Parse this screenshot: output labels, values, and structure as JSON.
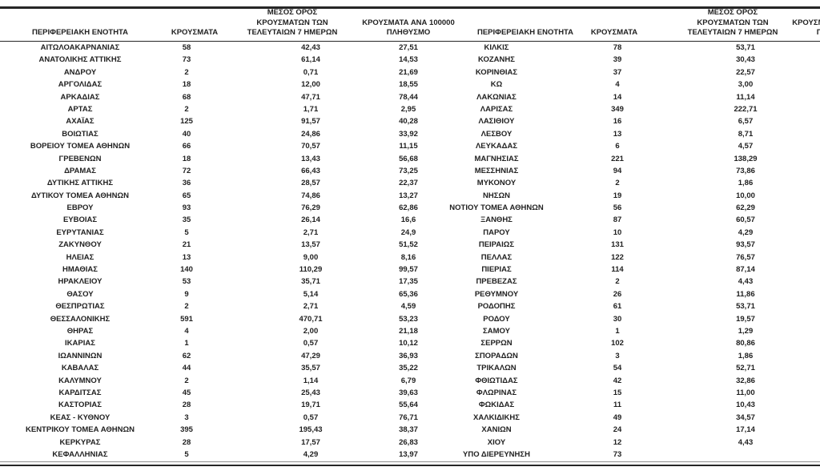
{
  "header": {
    "region": "ΠΕΡΙΦΕΡΕΙΑΚΗ ΕΝΟΤΗΤΑ",
    "cases": "ΚΡΟΥΣΜΑΤΑ",
    "avg7_l1": "ΜΕΣΟΣ ΟΡΟΣ",
    "avg7_l2": "ΚΡΟΥΣΜΑΤΩΝ ΤΩΝ",
    "avg7_l3": "ΤΕΛΕΥΤΑΙΩΝ 7 ΗΜΕΡΩΝ",
    "per100k_l1": "ΚΡΟΥΣΜΑΤΑ ΑΝΑ 100000",
    "per100k_l2": "ΠΛΗΘΥΣΜΟ"
  },
  "colors": {
    "text": "#212121",
    "border_dark": "#262626",
    "border_light": "#8f8f8f",
    "background": "#ffffff"
  },
  "left_table": {
    "rows": [
      {
        "region": "ΑΙΤΩΛΟΑΚΑΡΝΑΝΙΑΣ",
        "cases": "58",
        "avg7": "42,43",
        "per100k": "27,51"
      },
      {
        "region": "ΑΝΑΤΟΛΙΚΗΣ ΑΤΤΙΚΗΣ",
        "cases": "73",
        "avg7": "61,14",
        "per100k": "14,53"
      },
      {
        "region": "ΑΝΔΡΟΥ",
        "cases": "2",
        "avg7": "0,71",
        "per100k": "21,69"
      },
      {
        "region": "ΑΡΓΟΛΙΔΑΣ",
        "cases": "18",
        "avg7": "12,00",
        "per100k": "18,55"
      },
      {
        "region": "ΑΡΚΑΔΙΑΣ",
        "cases": "68",
        "avg7": "47,71",
        "per100k": "78,44"
      },
      {
        "region": "ΑΡΤΑΣ",
        "cases": "2",
        "avg7": "1,71",
        "per100k": "2,95"
      },
      {
        "region": "ΑΧΑΪΑΣ",
        "cases": "125",
        "avg7": "91,57",
        "per100k": "40,28"
      },
      {
        "region": "ΒΟΙΩΤΙΑΣ",
        "cases": "40",
        "avg7": "24,86",
        "per100k": "33,92"
      },
      {
        "region": "ΒΟΡΕΙΟΥ ΤΟΜΕΑ ΑΘΗΝΩΝ",
        "cases": "66",
        "avg7": "70,57",
        "per100k": "11,15"
      },
      {
        "region": "ΓΡΕΒΕΝΩΝ",
        "cases": "18",
        "avg7": "13,43",
        "per100k": "56,68"
      },
      {
        "region": "ΔΡΑΜΑΣ",
        "cases": "72",
        "avg7": "66,43",
        "per100k": "73,25"
      },
      {
        "region": "ΔΥΤΙΚΗΣ ΑΤΤΙΚΗΣ",
        "cases": "36",
        "avg7": "28,57",
        "per100k": "22,37"
      },
      {
        "region": "ΔΥΤΙΚΟΥ ΤΟΜΕΑ ΑΘΗΝΩΝ",
        "cases": "65",
        "avg7": "74,86",
        "per100k": "13,27"
      },
      {
        "region": "ΕΒΡΟΥ",
        "cases": "93",
        "avg7": "76,29",
        "per100k": "62,86"
      },
      {
        "region": "ΕΥΒΟΙΑΣ",
        "cases": "35",
        "avg7": "26,14",
        "per100k": "16,6"
      },
      {
        "region": "ΕΥΡΥΤΑΝΙΑΣ",
        "cases": "5",
        "avg7": "2,71",
        "per100k": "24,9"
      },
      {
        "region": "ΖΑΚΥΝΘΟΥ",
        "cases": "21",
        "avg7": "13,57",
        "per100k": "51,52"
      },
      {
        "region": "ΗΛΕΙΑΣ",
        "cases": "13",
        "avg7": "9,00",
        "per100k": "8,16"
      },
      {
        "region": "ΗΜΑΘΙΑΣ",
        "cases": "140",
        "avg7": "110,29",
        "per100k": "99,57"
      },
      {
        "region": "ΗΡΑΚΛΕΙΟΥ",
        "cases": "53",
        "avg7": "35,71",
        "per100k": "17,35"
      },
      {
        "region": "ΘΑΣΟΥ",
        "cases": "9",
        "avg7": "5,14",
        "per100k": "65,36"
      },
      {
        "region": "ΘΕΣΠΡΩΤΙΑΣ",
        "cases": "2",
        "avg7": "2,71",
        "per100k": "4,59"
      },
      {
        "region": "ΘΕΣΣΑΛΟΝΙΚΗΣ",
        "cases": "591",
        "avg7": "470,71",
        "per100k": "53,23"
      },
      {
        "region": "ΘΗΡΑΣ",
        "cases": "4",
        "avg7": "2,00",
        "per100k": "21,18"
      },
      {
        "region": "ΙΚΑΡΙΑΣ",
        "cases": "1",
        "avg7": "0,57",
        "per100k": "10,12"
      },
      {
        "region": "ΙΩΑΝΝΙΝΩΝ",
        "cases": "62",
        "avg7": "47,29",
        "per100k": "36,93"
      },
      {
        "region": "ΚΑΒΑΛΑΣ",
        "cases": "44",
        "avg7": "35,57",
        "per100k": "35,22"
      },
      {
        "region": "ΚΑΛΥΜΝΟΥ",
        "cases": "2",
        "avg7": "1,14",
        "per100k": "6,79"
      },
      {
        "region": "ΚΑΡΔΙΤΣΑΣ",
        "cases": "45",
        "avg7": "25,43",
        "per100k": "39,63"
      },
      {
        "region": "ΚΑΣΤΟΡΙΑΣ",
        "cases": "28",
        "avg7": "19,71",
        "per100k": "55,64"
      },
      {
        "region": "ΚΕΑΣ - ΚΥΘΝΟΥ",
        "cases": "3",
        "avg7": "0,57",
        "per100k": "76,71"
      },
      {
        "region": "ΚΕΝΤΡΙΚΟΥ ΤΟΜΕΑ ΑΘΗΝΩΝ",
        "cases": "395",
        "avg7": "195,43",
        "per100k": "38,37"
      },
      {
        "region": "ΚΕΡΚΥΡΑΣ",
        "cases": "28",
        "avg7": "17,57",
        "per100k": "26,83"
      },
      {
        "region": "ΚΕΦΑΛΛΗΝΙΑΣ",
        "cases": "5",
        "avg7": "4,29",
        "per100k": "13,97"
      }
    ]
  },
  "right_table": {
    "rows": [
      {
        "region": "ΚΙΛΚΙΣ",
        "cases": "78",
        "avg7": "53,71",
        "per100k": ""
      },
      {
        "region": "ΚΟΖΑΝΗΣ",
        "cases": "39",
        "avg7": "30,43",
        "per100k": ""
      },
      {
        "region": "ΚΟΡΙΝΘΙΑΣ",
        "cases": "37",
        "avg7": "22,57",
        "per100k": ""
      },
      {
        "region": "ΚΩ",
        "cases": "4",
        "avg7": "3,00",
        "per100k": ""
      },
      {
        "region": "ΛΑΚΩΝΙΑΣ",
        "cases": "14",
        "avg7": "11,14",
        "per100k": ""
      },
      {
        "region": "ΛΑΡΙΣΑΣ",
        "cases": "349",
        "avg7": "222,71",
        "per100k": ""
      },
      {
        "region": "ΛΑΣΙΘΙΟΥ",
        "cases": "16",
        "avg7": "6,57",
        "per100k": ""
      },
      {
        "region": "ΛΕΣΒΟΥ",
        "cases": "13",
        "avg7": "8,71",
        "per100k": ""
      },
      {
        "region": "ΛΕΥΚΑΔΑΣ",
        "cases": "6",
        "avg7": "4,57",
        "per100k": ""
      },
      {
        "region": "ΜΑΓΝΗΣΙΑΣ",
        "cases": "221",
        "avg7": "138,29",
        "per100k": ""
      },
      {
        "region": "ΜΕΣΣΗΝΙΑΣ",
        "cases": "94",
        "avg7": "73,86",
        "per100k": ""
      },
      {
        "region": "ΜΥΚΟΝΟΥ",
        "cases": "2",
        "avg7": "1,86",
        "per100k": ""
      },
      {
        "region": "ΝΗΣΩΝ",
        "cases": "19",
        "avg7": "10,00",
        "per100k": ""
      },
      {
        "region": "ΝΟΤΙΟΥ ΤΟΜΕΑ ΑΘΗΝΩΝ",
        "cases": "56",
        "avg7": "62,29",
        "per100k": ""
      },
      {
        "region": "ΞΑΝΘΗΣ",
        "cases": "87",
        "avg7": "60,57",
        "per100k": ""
      },
      {
        "region": "ΠΑΡΟΥ",
        "cases": "10",
        "avg7": "4,29",
        "per100k": ""
      },
      {
        "region": "ΠΕΙΡΑΙΩΣ",
        "cases": "131",
        "avg7": "93,57",
        "per100k": ""
      },
      {
        "region": "ΠΕΛΛΑΣ",
        "cases": "122",
        "avg7": "76,57",
        "per100k": ""
      },
      {
        "region": "ΠΙΕΡΙΑΣ",
        "cases": "114",
        "avg7": "87,14",
        "per100k": ""
      },
      {
        "region": "ΠΡΕΒΕΖΑΣ",
        "cases": "2",
        "avg7": "4,43",
        "per100k": ""
      },
      {
        "region": "ΡΕΘΥΜΝΟΥ",
        "cases": "26",
        "avg7": "11,86",
        "per100k": ""
      },
      {
        "region": "ΡΟΔΟΠΗΣ",
        "cases": "61",
        "avg7": "53,71",
        "per100k": ""
      },
      {
        "region": "ΡΟΔΟΥ",
        "cases": "30",
        "avg7": "19,57",
        "per100k": ""
      },
      {
        "region": "ΣΑΜΟΥ",
        "cases": "1",
        "avg7": "1,29",
        "per100k": ""
      },
      {
        "region": "ΣΕΡΡΩΝ",
        "cases": "102",
        "avg7": "80,86",
        "per100k": ""
      },
      {
        "region": "ΣΠΟΡΑΔΩΝ",
        "cases": "3",
        "avg7": "1,86",
        "per100k": ""
      },
      {
        "region": "ΤΡΙΚΑΛΩΝ",
        "cases": "54",
        "avg7": "52,71",
        "per100k": ""
      },
      {
        "region": "ΦΘΙΩΤΙΔΑΣ",
        "cases": "42",
        "avg7": "32,86",
        "per100k": ""
      },
      {
        "region": "ΦΛΩΡΙΝΑΣ",
        "cases": "15",
        "avg7": "11,00",
        "per100k": ""
      },
      {
        "region": "ΦΩΚΙΔΑΣ",
        "cases": "11",
        "avg7": "10,43",
        "per100k": ""
      },
      {
        "region": "ΧΑΛΚΙΔΙΚΗΣ",
        "cases": "49",
        "avg7": "34,57",
        "per100k": ""
      },
      {
        "region": "ΧΑΝΙΩΝ",
        "cases": "24",
        "avg7": "17,14",
        "per100k": ""
      },
      {
        "region": "ΧΙΟΥ",
        "cases": "12",
        "avg7": "4,43",
        "per100k": ""
      },
      {
        "region": "ΥΠΟ ΔΙΕΡΕΥΝΗΣΗ",
        "cases": "73",
        "avg7": "",
        "per100k": ""
      }
    ]
  }
}
